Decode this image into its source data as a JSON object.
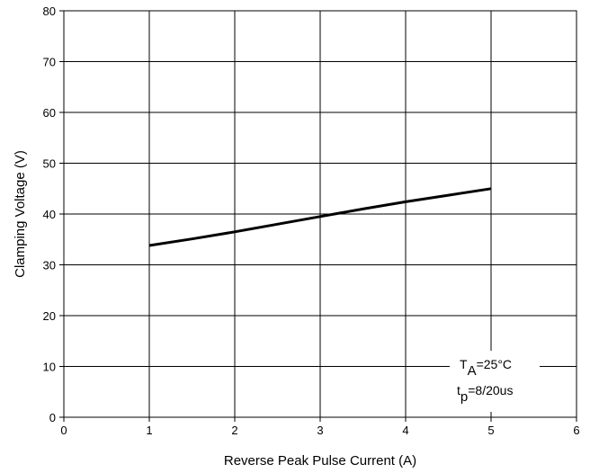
{
  "chart_data": {
    "type": "line",
    "title": "",
    "xlabel": "Reverse Peak Pulse Current (A)",
    "ylabel": "Clamping Voltage (V)",
    "xlim": [
      0,
      6
    ],
    "ylim": [
      0,
      80
    ],
    "xticks": [
      0,
      1,
      2,
      3,
      4,
      5,
      6
    ],
    "yticks": [
      0,
      10,
      20,
      30,
      40,
      50,
      60,
      70,
      80
    ],
    "grid": true,
    "series": [
      {
        "x": [
          1,
          1.5,
          2,
          2.5,
          3,
          3.5,
          4,
          4.5,
          5
        ],
        "y": [
          33.8,
          35.1,
          36.5,
          38.0,
          39.5,
          41.0,
          42.4,
          43.7,
          45.0
        ]
      }
    ],
    "annotations": {
      "line1": {
        "main": "T",
        "sub": "A",
        "rest": "=25°C"
      },
      "line2": {
        "main": "t",
        "sub": "p",
        "rest": "=8/20us"
      }
    }
  }
}
